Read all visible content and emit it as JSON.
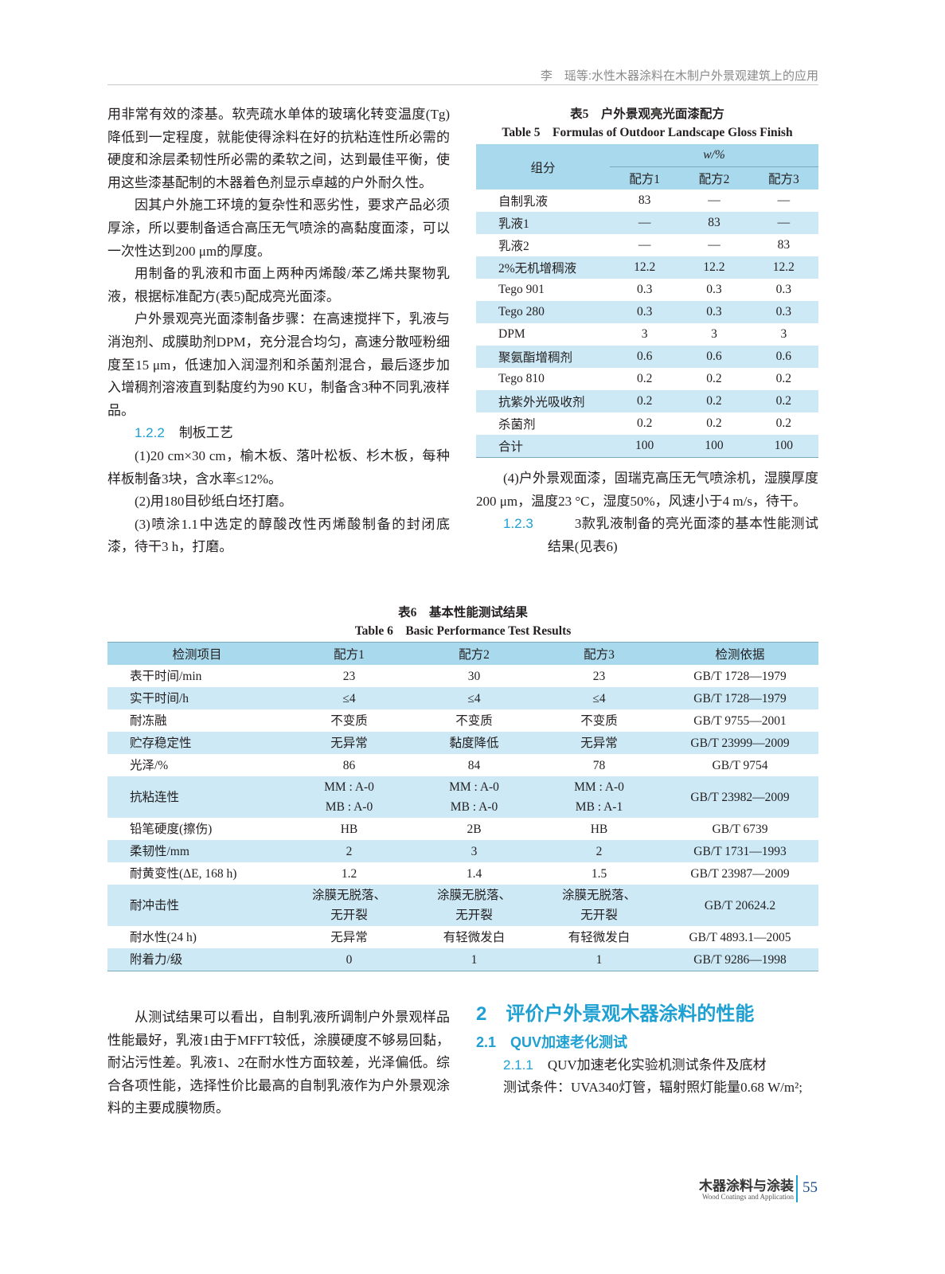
{
  "header": {
    "running_title": "李　瑶等:水性木器涂料在木制户外景观建筑上的应用"
  },
  "left_col": {
    "p1": "用非常有效的漆基。软壳疏水单体的玻璃化转变温度(Tg)降低到一定程度，就能使得涂料在好的抗粘连性所必需的硬度和涂层柔韧性所必需的柔软之间，达到最佳平衡，使用这些漆基配制的木器着色剂显示卓越的户外耐久性。",
    "p2": "因其户外施工环境的复杂性和恶劣性，要求产品必须厚涂，所以要制备适合高压无气喷涂的高黏度面漆，可以一次性达到200 μm的厚度。",
    "p3": "用制备的乳液和市面上两种丙烯酸/苯乙烯共聚物乳液，根据标准配方(表5)配成亮光面漆。",
    "p4": "户外景观亮光面漆制备步骤：在高速搅拌下，乳液与消泡剂、成膜助剂DPM，充分混合均匀，高速分散哑粉细度至15 μm，低速加入润湿剂和杀菌剂混合，最后逐步加入增稠剂溶液直到黏度约为90 KU，制备含3种不同乳液样品。",
    "h_num": "1.2.2",
    "h_text": "制板工艺",
    "p5": "(1)20 cm×30 cm，榆木板、落叶松板、杉木板，每种样板制备3块，含水率≤12%。",
    "p6": "(2)用180目砂纸白坯打磨。",
    "p7": "(3)喷涂1.1中选定的醇酸改性丙烯酸制备的封闭底漆，待干3 h，打磨。"
  },
  "table5": {
    "caption_cn": "表5　户外景观亮光面漆配方",
    "caption_en": "Table 5　Formulas of Outdoor Landscape Gloss Finish",
    "col_group": "组分",
    "unit": "w/%",
    "cols": [
      "配方1",
      "配方2",
      "配方3"
    ],
    "rows": [
      [
        "自制乳液",
        "83",
        "—",
        "—"
      ],
      [
        "乳液1",
        "—",
        "83",
        "—"
      ],
      [
        "乳液2",
        "—",
        "—",
        "83"
      ],
      [
        "2%无机增稠液",
        "12.2",
        "12.2",
        "12.2"
      ],
      [
        "Tego 901",
        "0.3",
        "0.3",
        "0.3"
      ],
      [
        "Tego 280",
        "0.3",
        "0.3",
        "0.3"
      ],
      [
        "DPM",
        "3",
        "3",
        "3"
      ],
      [
        "聚氨酯增稠剂",
        "0.6",
        "0.6",
        "0.6"
      ],
      [
        "Tego 810",
        "0.2",
        "0.2",
        "0.2"
      ],
      [
        "抗紫外光吸收剂",
        "0.2",
        "0.2",
        "0.2"
      ],
      [
        "杀菌剂",
        "0.2",
        "0.2",
        "0.2"
      ],
      [
        "合计",
        "100",
        "100",
        "100"
      ]
    ]
  },
  "right_col": {
    "p1": "(4)户外景观面漆，固瑞克高压无气喷涂机，湿膜厚度200 μm，温度23 °C，湿度50%，风速小于4 m/s，待干。",
    "h_num": "1.2.3",
    "h_text": "3款乳液制备的亮光面漆的基本性能测试结果(见表6)"
  },
  "table6": {
    "caption_cn": "表6　基本性能测试结果",
    "caption_en": "Table 6　Basic Performance Test Results",
    "headers": [
      "检测项目",
      "配方1",
      "配方2",
      "配方3",
      "检测依据"
    ],
    "rows": [
      [
        "表干时间/min",
        "23",
        "30",
        "23",
        "GB/T 1728—1979"
      ],
      [
        "实干时间/h",
        "≤4",
        "≤4",
        "≤4",
        "GB/T 1728—1979"
      ],
      [
        "耐冻融",
        "不变质",
        "不变质",
        "不变质",
        "GB/T 9755—2001"
      ],
      [
        "贮存稳定性",
        "无异常",
        "黏度降低",
        "无异常",
        "GB/T 23999—2009"
      ],
      [
        "光泽/%",
        "86",
        "84",
        "78",
        "GB/T 9754"
      ],
      [
        "抗粘连性",
        "MM : A-0\nMB : A-0",
        "MM : A-0\nMB : A-0",
        "MM : A-0\nMB : A-1",
        "GB/T 23982—2009"
      ],
      [
        "铅笔硬度(擦伤)",
        "HB",
        "2B",
        "HB",
        "GB/T 6739"
      ],
      [
        "柔韧性/mm",
        "2",
        "3",
        "2",
        "GB/T 1731—1993"
      ],
      [
        "耐黄变性(ΔE, 168 h)",
        "1.2",
        "1.4",
        "1.5",
        "GB/T 23987—2009"
      ],
      [
        "耐冲击性",
        "涂膜无脱落、\n无开裂",
        "涂膜无脱落、\n无开裂",
        "涂膜无脱落、\n无开裂",
        "GB/T 20624.2"
      ],
      [
        "耐水性(24 h)",
        "无异常",
        "有轻微发白",
        "有轻微发白",
        "GB/T 4893.1—2005"
      ],
      [
        "附着力/级",
        "0",
        "1",
        "1",
        "GB/T 9286—1998"
      ]
    ]
  },
  "bottom_left": {
    "p1": "从测试结果可以看出，自制乳液所调制户外景观样品性能最好，乳液1由于MFFT较低，涂膜硬度不够易回黏，耐沾污性差。乳液1、2在耐水性方面较差，光泽偏低。综合各项性能，选择性价比最高的自制乳液作为户外景观涂料的主要成膜物质。"
  },
  "bottom_right": {
    "h2": "2　评价户外景观木器涂料的性能",
    "h21": "2.1　QUV加速老化测试",
    "h211_num": "2.1.1",
    "h211_text": "QUV加速老化实验机测试条件及底材",
    "p1": "测试条件：UVA340灯管，辐射照灯能量0.68 W/m²;"
  },
  "footer": {
    "journal_cn": "木器涂料与涂装",
    "journal_en": "Wood Coatings and Application",
    "page": "55"
  },
  "colors": {
    "accent": "#1fa0d2",
    "table_header": "#a9d9ec",
    "table_band": "#cce9f5"
  }
}
